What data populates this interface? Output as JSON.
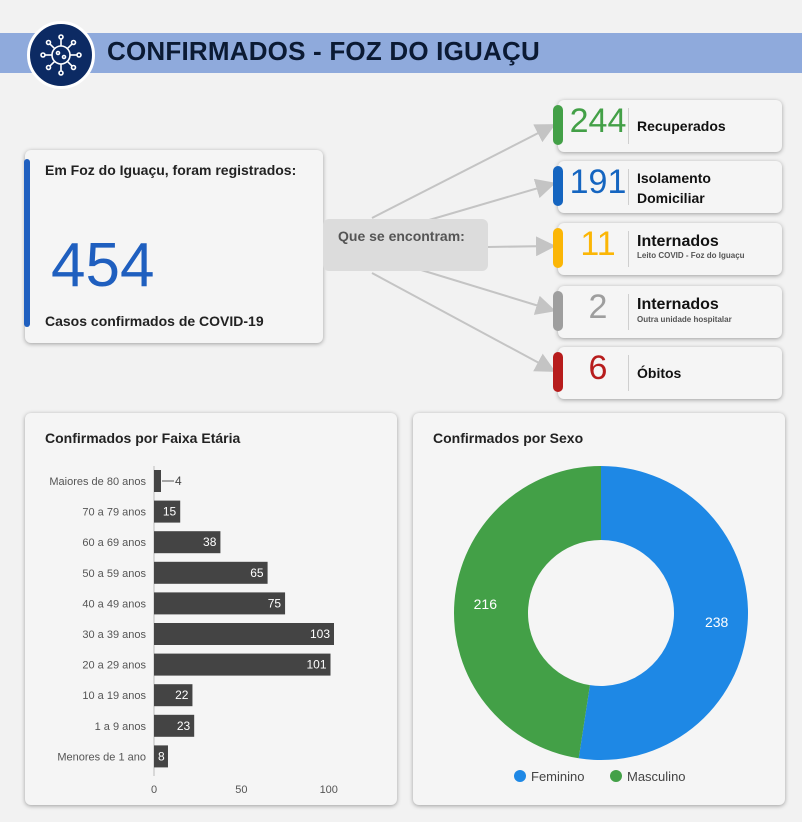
{
  "header": {
    "title": "CONFIRMADOS - FOZ DO IGUAÇU",
    "logo_icon": "virus-icon"
  },
  "summary": {
    "intro": "Em Foz do Iguaçu, foram registrados:",
    "total": "454",
    "caption": "Casos confirmados de COVID-19",
    "connector": "Que se encontram:"
  },
  "statuses": [
    {
      "value": "244",
      "label": "Recuperados",
      "sublabel": "",
      "color": "#43a047"
    },
    {
      "value": "191",
      "label": "Isolamento Domiciliar",
      "sublabel": "",
      "color": "#1565c0"
    },
    {
      "value": "11",
      "label": "Internados",
      "sublabel": "Leito COVID - Foz do Iguaçu",
      "color": "#fbb606"
    },
    {
      "value": "2",
      "label": "Internados",
      "sublabel": "Outra unidade hospitalar",
      "color": "#9e9e9e"
    },
    {
      "value": "6",
      "label": "Óbitos",
      "sublabel": "",
      "color": "#b71c1c"
    }
  ],
  "chart_data": [
    {
      "type": "bar",
      "orientation": "horizontal",
      "title": "Confirmados por Faixa Etária",
      "categories": [
        "Maiores de 80 anos",
        "70 a 79 anos",
        "60 a 69 anos",
        "50 a 59 anos",
        "40 a 49 anos",
        "30 a 39 anos",
        "20 a 29 anos",
        "10 a 19 anos",
        "1 a 9 anos",
        "Menores de 1 ano"
      ],
      "values": [
        4,
        15,
        38,
        65,
        75,
        103,
        101,
        22,
        23,
        8
      ],
      "xticks": [
        0,
        50,
        100
      ],
      "xlim": [
        0,
        103
      ],
      "bar_color": "#444444"
    },
    {
      "type": "pie",
      "donut": true,
      "title": "Confirmados por Sexo",
      "labels": [
        "Feminino",
        "Masculino"
      ],
      "values": [
        238,
        216
      ],
      "colors": [
        "#1e88e5",
        "#43a047"
      ],
      "legend_position": "bottom"
    }
  ]
}
